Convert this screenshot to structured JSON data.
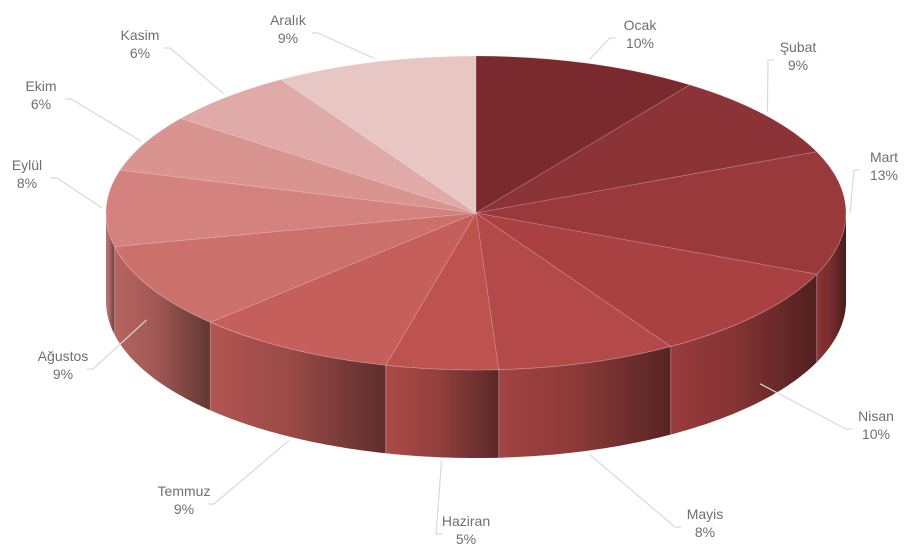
{
  "chart_data": {
    "type": "pie",
    "style": "3d",
    "title": "",
    "categories": [
      "Ocak",
      "Şubat",
      "Mart",
      "Nisan",
      "Mayis",
      "Haziran",
      "Temmuz",
      "Ağustos",
      "Eylül",
      "Ekim",
      "Kasim",
      "Aralık"
    ],
    "values": [
      10,
      9,
      13,
      10,
      8,
      5,
      9,
      9,
      8,
      6,
      6,
      9
    ],
    "value_labels": [
      "10%",
      "9%",
      "13%",
      "10%",
      "8%",
      "5%",
      "9%",
      "9%",
      "8%",
      "6%",
      "6%",
      "9%"
    ],
    "colors": [
      "#7a2a2e",
      "#8b3336",
      "#9a393b",
      "#a94142",
      "#b34a49",
      "#bd524f",
      "#c55f5b",
      "#cb706b",
      "#d3827f",
      "#d99490",
      "#e0aaa8",
      "#e8c6c4"
    ],
    "side_shading": "darker toward the front-right",
    "start_angle": "12 o'clock, clockwise",
    "legend": "none",
    "data_labels": "outside with leader lines"
  }
}
